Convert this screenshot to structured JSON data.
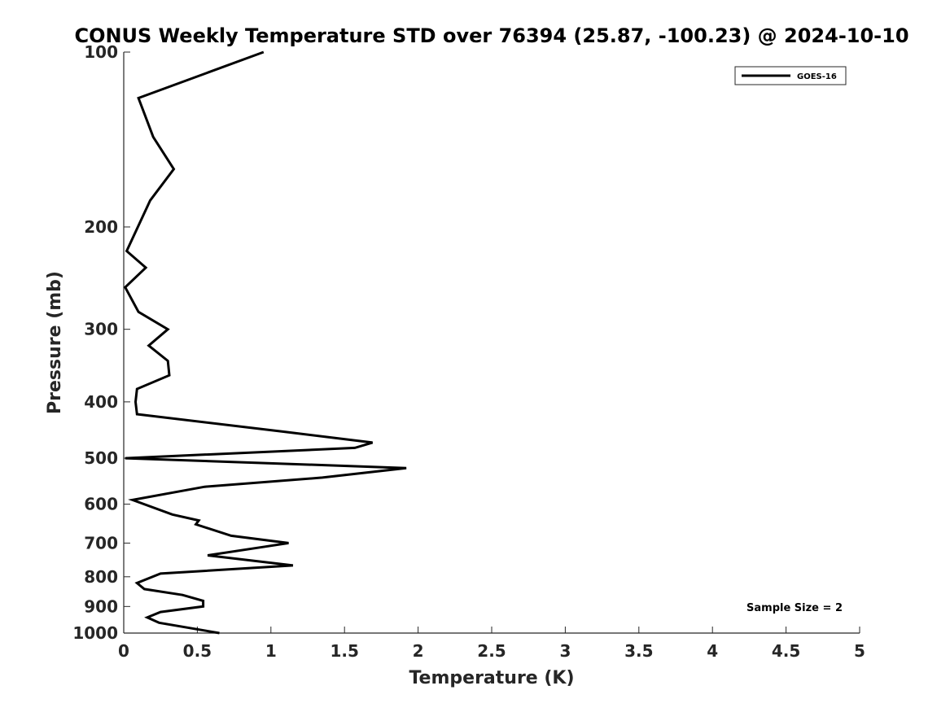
{
  "chart_data": {
    "type": "line",
    "title": "CONUS Weekly Temperature STD over 76394 (25.87, -100.23) @ 2024-10-10",
    "xlabel": "Temperature (K)",
    "ylabel": "Pressure (mb)",
    "xlim": [
      0,
      5
    ],
    "ylim": [
      100,
      1000
    ],
    "y_scale": "log",
    "y_reversed": true,
    "grid": false,
    "legend_position": "top-right",
    "x_ticks": [
      "0",
      "0.5",
      "1",
      "1.5",
      "2",
      "2.5",
      "3",
      "3.5",
      "4",
      "4.5",
      "5"
    ],
    "y_ticks": [
      "100",
      "200",
      "300",
      "400",
      "500",
      "600",
      "700",
      "800",
      "900",
      "1000"
    ],
    "annotation": "Sample Size = 2",
    "series": [
      {
        "name": "GOES-16",
        "color": "#000000",
        "points": [
          [
            0.95,
            100
          ],
          [
            0.1,
            120
          ],
          [
            0.2,
            140
          ],
          [
            0.34,
            159
          ],
          [
            0.18,
            180
          ],
          [
            0.02,
            220
          ],
          [
            0.15,
            235
          ],
          [
            0.01,
            254
          ],
          [
            0.1,
            280
          ],
          [
            0.3,
            300
          ],
          [
            0.17,
            320
          ],
          [
            0.3,
            340
          ],
          [
            0.31,
            360
          ],
          [
            0.09,
            380
          ],
          [
            0.08,
            400
          ],
          [
            0.09,
            420
          ],
          [
            1.08,
            450
          ],
          [
            1.69,
            470
          ],
          [
            1.57,
            480
          ],
          [
            0.01,
            500
          ],
          [
            1.92,
            520
          ],
          [
            1.35,
            540
          ],
          [
            0.55,
            560
          ],
          [
            0.06,
            590
          ],
          [
            0.33,
            625
          ],
          [
            0.51,
            640
          ],
          [
            0.49,
            650
          ],
          [
            0.73,
            680
          ],
          [
            1.12,
            700
          ],
          [
            0.96,
            710
          ],
          [
            0.57,
            735
          ],
          [
            1.15,
            765
          ],
          [
            0.25,
            790
          ],
          [
            0.09,
            820
          ],
          [
            0.14,
            840
          ],
          [
            0.4,
            860
          ],
          [
            0.54,
            880
          ],
          [
            0.54,
            900
          ],
          [
            0.25,
            920
          ],
          [
            0.16,
            940
          ],
          [
            0.24,
            960
          ],
          [
            0.65,
            1000
          ]
        ]
      }
    ]
  }
}
